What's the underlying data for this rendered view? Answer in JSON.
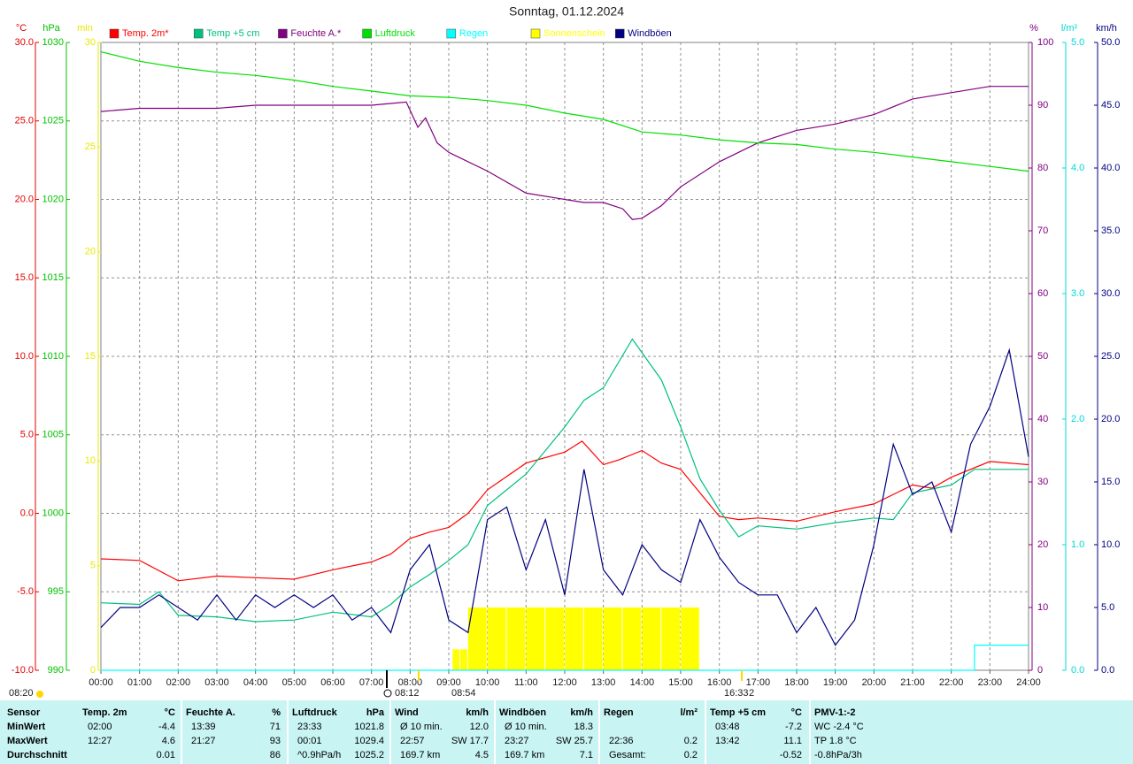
{
  "chart_data": {
    "type": "line",
    "title": "Sonntag, 01.12.2024",
    "xlim": [
      0,
      24
    ],
    "xticks": [
      {
        "value": 0,
        "label": "00:00"
      },
      {
        "value": 1,
        "label": "01:00"
      },
      {
        "value": 2,
        "label": "02:00"
      },
      {
        "value": 3,
        "label": "03:00"
      },
      {
        "value": 4,
        "label": "04:00"
      },
      {
        "value": 5,
        "label": "05:00"
      },
      {
        "value": 6,
        "label": "06:00"
      },
      {
        "value": 7,
        "label": "07:00"
      },
      {
        "value": 8,
        "label": "08:00"
      },
      {
        "value": 9,
        "label": "09:00"
      },
      {
        "value": 10,
        "label": "10:00"
      },
      {
        "value": 11,
        "label": "11:00"
      },
      {
        "value": 12,
        "label": "12:00"
      },
      {
        "value": 13,
        "label": "13:00"
      },
      {
        "value": 14,
        "label": "14:00"
      },
      {
        "value": 15,
        "label": "15:00"
      },
      {
        "value": 16,
        "label": "16:00"
      },
      {
        "value": 17,
        "label": "17:00"
      },
      {
        "value": 18,
        "label": "18:00"
      },
      {
        "value": 19,
        "label": "19:00"
      },
      {
        "value": 20,
        "label": "20:00"
      },
      {
        "value": 21,
        "label": "21:00"
      },
      {
        "value": 22,
        "label": "22:00"
      },
      {
        "value": 23,
        "label": "23:00"
      },
      {
        "value": 24,
        "label": "24:00"
      }
    ],
    "grid": true,
    "axes": [
      {
        "id": "t",
        "title": "°C",
        "color": "#e00000",
        "side": "left",
        "lim": [
          -10,
          30
        ],
        "grid": true,
        "ticks": [
          {
            "value": 30,
            "label": "30.0"
          },
          {
            "value": 25,
            "label": "25.0"
          },
          {
            "value": 20,
            "label": "20.0"
          },
          {
            "value": 15,
            "label": "15.0"
          },
          {
            "value": 10,
            "label": "10.0"
          },
          {
            "value": 5,
            "label": "5.0"
          },
          {
            "value": 0,
            "label": "0.0"
          },
          {
            "value": -5,
            "label": "-5.0"
          },
          {
            "value": -10,
            "label": "-10.0"
          }
        ]
      },
      {
        "id": "p",
        "title": "hPa",
        "color": "#00c000",
        "side": "left",
        "lim": [
          990,
          1030
        ],
        "ticks": [
          1030,
          1025,
          1020,
          1015,
          1010,
          1005,
          1000,
          995,
          990
        ]
      },
      {
        "id": "s",
        "title": "min",
        "color": "#e8e800",
        "side": "left",
        "lim": [
          0,
          30
        ],
        "ticks": [
          30,
          25,
          20,
          15,
          10,
          5,
          0
        ]
      },
      {
        "id": "h",
        "title": "%",
        "color": "#800080",
        "side": "right",
        "lim": [
          0,
          100
        ],
        "ticks": [
          100,
          90,
          80,
          70,
          60,
          50,
          40,
          30,
          20,
          10,
          0
        ]
      },
      {
        "id": "r",
        "title": "l/m²",
        "color": "#00d8d8",
        "side": "right",
        "lim": [
          0,
          5
        ],
        "ticks": [
          {
            "value": 5,
            "label": "5.0"
          },
          {
            "value": 4,
            "label": "4.0"
          },
          {
            "value": 3,
            "label": "3.0"
          },
          {
            "value": 2,
            "label": "2.0"
          },
          {
            "value": 1,
            "label": "1.0"
          },
          {
            "value": 0,
            "label": "0.0"
          }
        ]
      },
      {
        "id": "w",
        "title": "km/h",
        "color": "#000080",
        "side": "right",
        "lim": [
          0,
          50
        ],
        "ticks": [
          {
            "value": 50,
            "label": "50.0"
          },
          {
            "value": 45,
            "label": "45.0"
          },
          {
            "value": 40,
            "label": "40.0"
          },
          {
            "value": 35,
            "label": "35.0"
          },
          {
            "value": 30,
            "label": "30.0"
          },
          {
            "value": 25,
            "label": "25.0"
          },
          {
            "value": 20,
            "label": "20.0"
          },
          {
            "value": 15,
            "label": "15.0"
          },
          {
            "value": 10,
            "label": "10.0"
          },
          {
            "value": 5,
            "label": "5.0"
          },
          {
            "value": 0,
            "label": "0.0"
          }
        ]
      }
    ],
    "series": [
      {
        "name": "Temp. 2m*",
        "color": "#ff0000",
        "axis": "t",
        "type": "line",
        "x": [
          0,
          1,
          2,
          3,
          4,
          5,
          6,
          7,
          7.5,
          8,
          8.5,
          9,
          9.5,
          10,
          11,
          12,
          12.45,
          13,
          13.4,
          14,
          14.5,
          15,
          15.5,
          16,
          16.5,
          17,
          18,
          19,
          20,
          21,
          21.5,
          22,
          23,
          24
        ],
        "values": [
          -2.9,
          -3.0,
          -4.3,
          -4.0,
          -4.1,
          -4.2,
          -3.6,
          -3.1,
          -2.6,
          -1.6,
          -1.2,
          -0.9,
          0.0,
          1.5,
          3.2,
          3.9,
          4.6,
          3.1,
          3.4,
          4.0,
          3.2,
          2.8,
          1.3,
          -0.2,
          -0.4,
          -0.3,
          -0.5,
          0.1,
          0.6,
          1.8,
          1.6,
          2.3,
          3.3,
          3.1
        ]
      },
      {
        "name": "Temp +5 cm",
        "color": "#00c080",
        "axis": "t",
        "type": "line",
        "x": [
          0,
          1,
          1.5,
          2,
          3,
          4,
          5,
          6,
          7,
          7.5,
          8,
          8.5,
          9,
          9.5,
          10,
          10.5,
          11,
          11.5,
          12,
          12.5,
          13,
          13.75,
          14.5,
          15,
          15.5,
          16,
          16.5,
          17,
          18,
          19,
          20,
          20.5,
          21,
          22,
          22.6,
          23,
          24
        ],
        "values": [
          -5.7,
          -5.8,
          -5.0,
          -6.5,
          -6.6,
          -6.9,
          -6.8,
          -6.3,
          -6.6,
          -5.8,
          -4.7,
          -3.9,
          -3.0,
          -2.0,
          0.5,
          1.5,
          2.5,
          4.0,
          5.5,
          7.2,
          8.0,
          11.1,
          8.5,
          5.5,
          2.2,
          0.2,
          -1.5,
          -0.8,
          -1.0,
          -0.6,
          -0.3,
          -0.4,
          1.3,
          1.8,
          2.8,
          2.8,
          2.8
        ]
      },
      {
        "name": "Feuchte A.*",
        "color": "#800080",
        "axis": "h",
        "type": "line",
        "x": [
          0,
          1,
          2,
          3,
          4,
          5,
          6,
          7,
          7.9,
          8.2,
          8.4,
          8.7,
          9,
          10,
          11,
          12,
          12.5,
          13,
          13.5,
          13.75,
          14,
          14.5,
          15,
          16,
          17,
          18,
          19,
          20,
          21,
          22,
          23,
          24
        ],
        "values": [
          89,
          89.5,
          89.5,
          89.5,
          90,
          90,
          90,
          90,
          90.5,
          86.5,
          88,
          84,
          82.5,
          79.5,
          76,
          75,
          74.5,
          74.5,
          73.5,
          71.8,
          72,
          74,
          77,
          81,
          84,
          86,
          87,
          88.5,
          91,
          92,
          93,
          93
        ]
      },
      {
        "name": "Luftdruck",
        "color": "#00e000",
        "axis": "p",
        "type": "line",
        "x": [
          0,
          1,
          2,
          3,
          4,
          5,
          6,
          7,
          8,
          9,
          10,
          11,
          12,
          13,
          14,
          15,
          16,
          17,
          18,
          19,
          20,
          21,
          22,
          23,
          24
        ],
        "values": [
          1029.4,
          1028.8,
          1028.4,
          1028.1,
          1027.9,
          1027.6,
          1027.2,
          1026.9,
          1026.6,
          1026.5,
          1026.3,
          1026.0,
          1025.5,
          1025.1,
          1024.3,
          1024.1,
          1023.8,
          1023.6,
          1023.5,
          1023.2,
          1023.0,
          1022.7,
          1022.4,
          1022.1,
          1021.8
        ]
      },
      {
        "name": "Regen",
        "color": "#00ffff",
        "axis": "r",
        "type": "line",
        "x": [
          0,
          22.6,
          22.6,
          24
        ],
        "values": [
          0,
          0,
          0.2,
          0.2
        ]
      },
      {
        "name": "Sonnenschein",
        "color": "#ffff00",
        "axis": "s",
        "type": "bar",
        "x": [
          9.1,
          9.3,
          9.5,
          10,
          10.5,
          11,
          11.5,
          12,
          12.5,
          13,
          13.5,
          14,
          14.5,
          15
        ],
        "values": [
          1,
          1,
          3,
          3,
          3,
          3,
          3,
          3,
          3,
          3,
          3,
          3,
          3,
          3
        ]
      },
      {
        "name": "Windböen",
        "color": "#000080",
        "axis": "w",
        "type": "line",
        "x": [
          0,
          0.5,
          1,
          1.5,
          2,
          2.5,
          3,
          3.5,
          4,
          4.5,
          5,
          5.5,
          6,
          6.5,
          7,
          7.5,
          8,
          8.5,
          9,
          9.5,
          10,
          10.5,
          11,
          11.5,
          12,
          12.5,
          13,
          13.5,
          14,
          14.5,
          15,
          15.5,
          16,
          16.5,
          17,
          17.5,
          18,
          18.5,
          19,
          19.5,
          20,
          20.5,
          21,
          21.5,
          22,
          22.5,
          23,
          23.5,
          24
        ],
        "values": [
          3.4,
          5,
          5,
          6,
          5,
          4,
          6,
          4,
          6,
          5,
          6,
          5,
          6,
          4,
          5,
          3,
          8,
          10,
          4,
          3,
          12,
          13,
          8,
          12,
          6,
          16,
          8,
          6,
          10,
          8,
          7,
          12,
          9,
          7,
          6,
          6,
          3,
          5,
          2,
          4,
          10,
          18,
          14,
          15,
          11,
          18,
          21,
          25.5,
          17
        ]
      }
    ],
    "annotations": [
      "08:20",
      "08:12",
      "08:54",
      "16:33",
      "2"
    ]
  },
  "table": {
    "row_labels": [
      "Sensor",
      "MinWert",
      "MaxWert",
      "Durchschnitt"
    ],
    "sections": [
      {
        "name": "Temp. 2m",
        "unit": "°C",
        "rows": [
          [
            "02:00",
            "-4.4"
          ],
          [
            "12:27",
            "4.6"
          ],
          [
            null,
            "0.01"
          ]
        ]
      },
      {
        "name": "Feuchte A.",
        "unit": "%",
        "rows": [
          [
            "13:39",
            "71"
          ],
          [
            "21:27",
            "93"
          ],
          [
            null,
            "86"
          ]
        ]
      },
      {
        "name": "Luftdruck",
        "unit": "hPa",
        "rows": [
          [
            "23:33",
            "1021.8"
          ],
          [
            "00:01",
            "1029.4"
          ],
          [
            "^0.9hPa/h",
            "1025.2"
          ]
        ]
      },
      {
        "name": "Wind",
        "unit": "km/h",
        "rows": [
          [
            "Ø 10 min.",
            "12.0"
          ],
          [
            "22:57",
            "SW 17.7"
          ],
          [
            "169.7 km",
            "4.5"
          ]
        ]
      },
      {
        "name": "Windböen",
        "unit": "km/h",
        "rows": [
          [
            "Ø 10 min.",
            "18.3"
          ],
          [
            "23:27",
            "SW 25.7"
          ],
          [
            "169.7 km",
            "7.1"
          ]
        ]
      },
      {
        "name": "Regen",
        "unit": "l/m²",
        "rows": [
          [
            null,
            null
          ],
          [
            "22:36",
            "0.2"
          ],
          [
            "Gesamt:",
            "0.2"
          ]
        ]
      },
      {
        "name": "Temp +5 cm",
        "unit": "°C",
        "rows": [
          [
            "03:48",
            "-7.2"
          ],
          [
            "13:42",
            "11.1"
          ],
          [
            null,
            "-0.52"
          ]
        ]
      },
      {
        "name": "PMV-1:-2",
        "rows": [
          [
            "WC -2.4 °C"
          ],
          [
            "TP 1.8 °C"
          ],
          [
            "-0.8hPa/3h"
          ]
        ]
      }
    ]
  }
}
